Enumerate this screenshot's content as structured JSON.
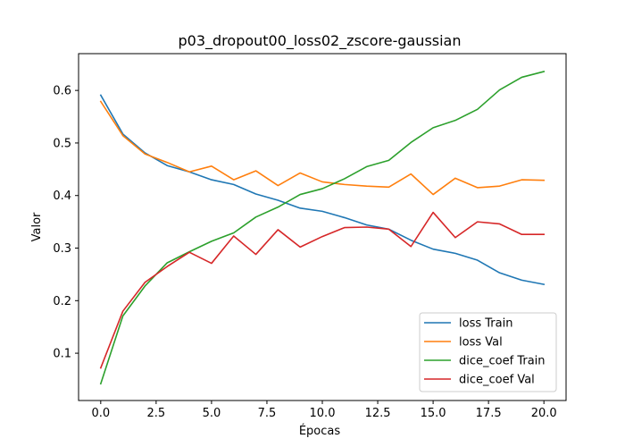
{
  "chart_data": {
    "type": "line",
    "title": "p03_dropout00_loss02_zscore-gaussian",
    "xlabel": "Épocas",
    "ylabel": "Valor",
    "xlim": [
      -1.0,
      21.0
    ],
    "ylim": [
      0.01,
      0.67
    ],
    "xticks": [
      0.0,
      2.5,
      5.0,
      7.5,
      10.0,
      12.5,
      15.0,
      17.5,
      20.0
    ],
    "xtick_labels": [
      "0.0",
      "2.5",
      "5.0",
      "7.5",
      "10.0",
      "12.5",
      "15.0",
      "17.5",
      "20.0"
    ],
    "yticks": [
      0.1,
      0.2,
      0.3,
      0.4,
      0.5,
      0.6
    ],
    "ytick_labels": [
      "0.1",
      "0.2",
      "0.3",
      "0.4",
      "0.5",
      "0.6"
    ],
    "grid": false,
    "legend_position": "lower-right",
    "x": [
      0,
      1,
      2,
      3,
      4,
      5,
      6,
      7,
      8,
      9,
      10,
      11,
      12,
      13,
      14,
      15,
      16,
      17,
      18,
      19,
      20
    ],
    "series": [
      {
        "name": "loss Train",
        "color": "#1f77b4",
        "values": [
          0.591,
          0.517,
          0.481,
          0.457,
          0.445,
          0.43,
          0.421,
          0.403,
          0.391,
          0.376,
          0.37,
          0.358,
          0.344,
          0.336,
          0.315,
          0.298,
          0.29,
          0.277,
          0.253,
          0.239,
          0.231
        ]
      },
      {
        "name": "loss Val",
        "color": "#ff7f0e",
        "values": [
          0.579,
          0.514,
          0.479,
          0.463,
          0.445,
          0.456,
          0.43,
          0.447,
          0.419,
          0.443,
          0.426,
          0.421,
          0.418,
          0.416,
          0.441,
          0.402,
          0.433,
          0.415,
          0.418,
          0.43,
          0.429
        ]
      },
      {
        "name": "dice_coef Train",
        "color": "#2ca02c",
        "values": [
          0.042,
          0.171,
          0.228,
          0.272,
          0.293,
          0.313,
          0.329,
          0.359,
          0.378,
          0.402,
          0.413,
          0.432,
          0.455,
          0.467,
          0.501,
          0.529,
          0.543,
          0.564,
          0.601,
          0.625,
          0.636
        ]
      },
      {
        "name": "dice_coef Val",
        "color": "#d62728",
        "values": [
          0.072,
          0.18,
          0.235,
          0.265,
          0.292,
          0.271,
          0.323,
          0.288,
          0.335,
          0.302,
          0.322,
          0.339,
          0.34,
          0.336,
          0.303,
          0.368,
          0.32,
          0.35,
          0.346,
          0.326,
          0.326
        ]
      }
    ]
  }
}
